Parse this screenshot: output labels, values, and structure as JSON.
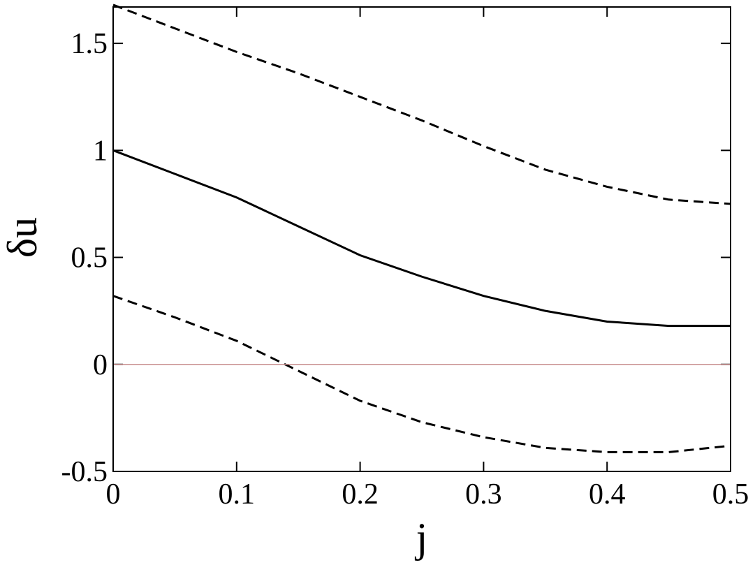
{
  "chart_data": {
    "type": "line",
    "x_label": "j",
    "y_label": "δu",
    "x": [
      0,
      0.05,
      0.1,
      0.15,
      0.2,
      0.25,
      0.3,
      0.35,
      0.4,
      0.45,
      0.5
    ],
    "series": [
      {
        "color": "#000000",
        "dash": false,
        "values": [
          1.0,
          0.89,
          0.78,
          0.645,
          0.51,
          0.41,
          0.32,
          0.25,
          0.2,
          0.18,
          0.18
        ]
      },
      {
        "color": "#000000",
        "dash": true,
        "values": [
          1.68,
          1.57,
          1.46,
          1.36,
          1.25,
          1.14,
          1.02,
          0.91,
          0.83,
          0.77,
          0.75
        ]
      },
      {
        "color": "#000000",
        "dash": true,
        "values": [
          0.32,
          0.22,
          0.11,
          -0.03,
          -0.17,
          -0.27,
          -0.34,
          -0.39,
          -0.41,
          -0.41,
          -0.38
        ]
      },
      {
        "color": "#c89090",
        "dash": false,
        "values": [
          0,
          0,
          0,
          0,
          0,
          0,
          0,
          0,
          0,
          0,
          0
        ]
      }
    ],
    "xlim": [
      0,
      0.5
    ],
    "ylim": [
      -0.5,
      1.67
    ],
    "xticks": [
      0,
      0.1,
      0.2,
      0.3,
      0.4,
      0.5
    ],
    "yticks": [
      -0.5,
      0,
      0.5,
      1,
      1.5
    ]
  }
}
